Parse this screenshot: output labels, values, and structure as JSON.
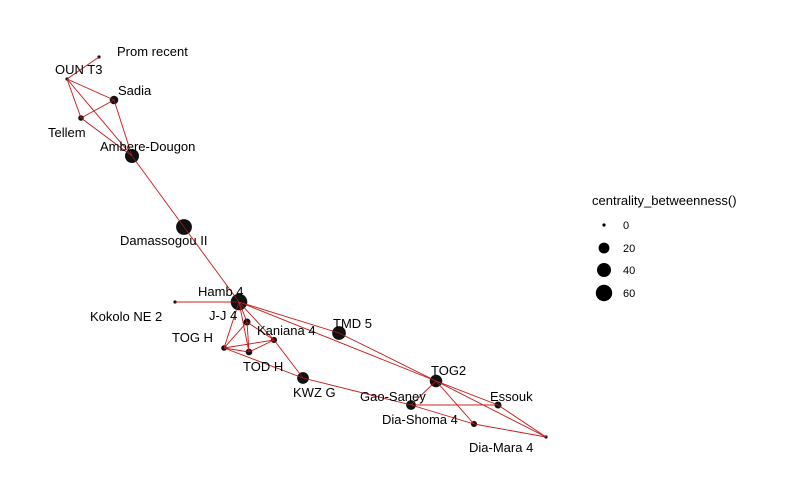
{
  "legend": {
    "title": "centrality_betweenness()",
    "entries": [
      {
        "label": "0",
        "value": 0
      },
      {
        "label": "20",
        "value": 20
      },
      {
        "label": "40",
        "value": 40
      },
      {
        "label": "60",
        "value": 60
      }
    ]
  },
  "colors": {
    "edge": "#cc2222",
    "node": "#111111",
    "node_inner": "#8b0000",
    "background": "#ffffff"
  },
  "chart_data": {
    "type": "network",
    "size_variable": "centrality_betweenness()",
    "nodes": [
      {
        "id": "prom",
        "label": "Prom recent",
        "size": 0
      },
      {
        "id": "oun",
        "label": "OUN T3",
        "size": 0
      },
      {
        "id": "sadia",
        "label": "Sadia",
        "size": 10
      },
      {
        "id": "tellem",
        "label": "Tellem",
        "size": 2
      },
      {
        "id": "ambere",
        "label": "Ambere-Dougon",
        "size": 40
      },
      {
        "id": "damassogou",
        "label": "Damassogou II",
        "size": 55
      },
      {
        "id": "hamb",
        "label": "Hamb 4",
        "size": 62
      },
      {
        "id": "kokolo",
        "label": "Kokolo NE 2",
        "size": 0
      },
      {
        "id": "jj4",
        "label": "J-J 4",
        "size": 5
      },
      {
        "id": "togh",
        "label": "TOG H",
        "size": 2
      },
      {
        "id": "kaniana",
        "label": "Kaniana 4",
        "size": 3
      },
      {
        "id": "todh",
        "label": "TOD H",
        "size": 4
      },
      {
        "id": "tmd5",
        "label": "TMD 5",
        "size": 38
      },
      {
        "id": "kwzg",
        "label": "KWZ G",
        "size": 25
      },
      {
        "id": "tog2",
        "label": "TOG2",
        "size": 30
      },
      {
        "id": "gaosaney",
        "label": "Gao-Saney",
        "size": 15
      },
      {
        "id": "essouk",
        "label": "Essouk",
        "size": 5
      },
      {
        "id": "diashoma",
        "label": "Dia-Shoma 4",
        "size": 3
      },
      {
        "id": "diamara",
        "label": "Dia-Mara 4",
        "size": 0
      }
    ],
    "edges": [
      [
        "prom",
        "oun"
      ],
      [
        "oun",
        "sadia"
      ],
      [
        "oun",
        "tellem"
      ],
      [
        "oun",
        "ambere"
      ],
      [
        "sadia",
        "tellem"
      ],
      [
        "sadia",
        "ambere"
      ],
      [
        "tellem",
        "ambere"
      ],
      [
        "ambere",
        "damassogou"
      ],
      [
        "damassogou",
        "hamb"
      ],
      [
        "kokolo",
        "hamb"
      ],
      [
        "hamb",
        "jj4"
      ],
      [
        "hamb",
        "togh"
      ],
      [
        "hamb",
        "kaniana"
      ],
      [
        "hamb",
        "todh"
      ],
      [
        "hamb",
        "tmd5"
      ],
      [
        "hamb",
        "tog2"
      ],
      [
        "jj4",
        "togh"
      ],
      [
        "jj4",
        "todh"
      ],
      [
        "jj4",
        "kaniana"
      ],
      [
        "togh",
        "kaniana"
      ],
      [
        "togh",
        "todh"
      ],
      [
        "togh",
        "kwzg"
      ],
      [
        "todh",
        "kaniana"
      ],
      [
        "kaniana",
        "kwzg"
      ],
      [
        "tmd5",
        "tog2"
      ],
      [
        "kwzg",
        "gaosaney"
      ],
      [
        "tog2",
        "gaosaney"
      ],
      [
        "tog2",
        "essouk"
      ],
      [
        "tog2",
        "diashoma"
      ],
      [
        "tog2",
        "diamara"
      ],
      [
        "gaosaney",
        "essouk"
      ],
      [
        "gaosaney",
        "diashoma"
      ],
      [
        "diashoma",
        "diamara"
      ],
      [
        "essouk",
        "diamara"
      ]
    ]
  }
}
